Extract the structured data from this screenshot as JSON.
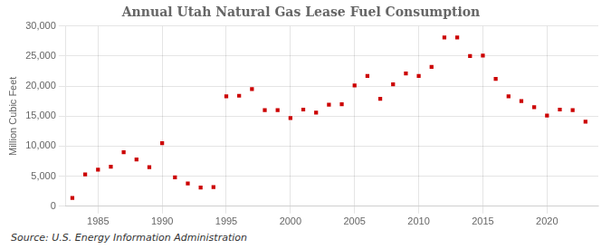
{
  "chart_data": {
    "type": "scatter",
    "title": "Annual Utah Natural Gas Lease Fuel Consumption",
    "ylabel": "Million Cubic Feet",
    "source": "Source: U.S. Energy Information Administration",
    "x": [
      1983,
      1984,
      1985,
      1986,
      1987,
      1988,
      1989,
      1990,
      1991,
      1992,
      1993,
      1994,
      1995,
      1996,
      1997,
      1998,
      1999,
      2000,
      2001,
      2002,
      2003,
      2004,
      2005,
      2006,
      2007,
      2008,
      2009,
      2010,
      2011,
      2012,
      2013,
      2014,
      2015,
      2016,
      2017,
      2018,
      2019,
      2020,
      2021,
      2022,
      2023
    ],
    "values": [
      1400,
      5300,
      6100,
      6600,
      9000,
      7800,
      6500,
      10500,
      4800,
      3800,
      3100,
      3200,
      18300,
      18400,
      19500,
      16000,
      16000,
      14700,
      16100,
      15600,
      16900,
      17000,
      20100,
      21700,
      17900,
      20300,
      22100,
      21700,
      23200,
      28100,
      28100,
      25000,
      25100,
      21200,
      18300,
      17500,
      16500,
      15100,
      16100,
      16000,
      14100
    ],
    "color": "#cc0000",
    "marker": "square",
    "xlim": [
      1982.5,
      2024
    ],
    "xticks": [
      1985,
      1990,
      1995,
      2000,
      2005,
      2010,
      2015,
      2020
    ],
    "ylim": [
      0,
      30000
    ],
    "yticks": [
      0,
      {
        "value": 5000,
        "label": "5,000"
      },
      {
        "value": 10000,
        "label": "10,000"
      },
      {
        "value": 15000,
        "label": "15,000"
      },
      {
        "value": 20000,
        "label": "20,000"
      },
      {
        "value": 25000,
        "label": "25,000"
      },
      {
        "value": 30000,
        "label": "30,000"
      }
    ],
    "grid": true
  }
}
